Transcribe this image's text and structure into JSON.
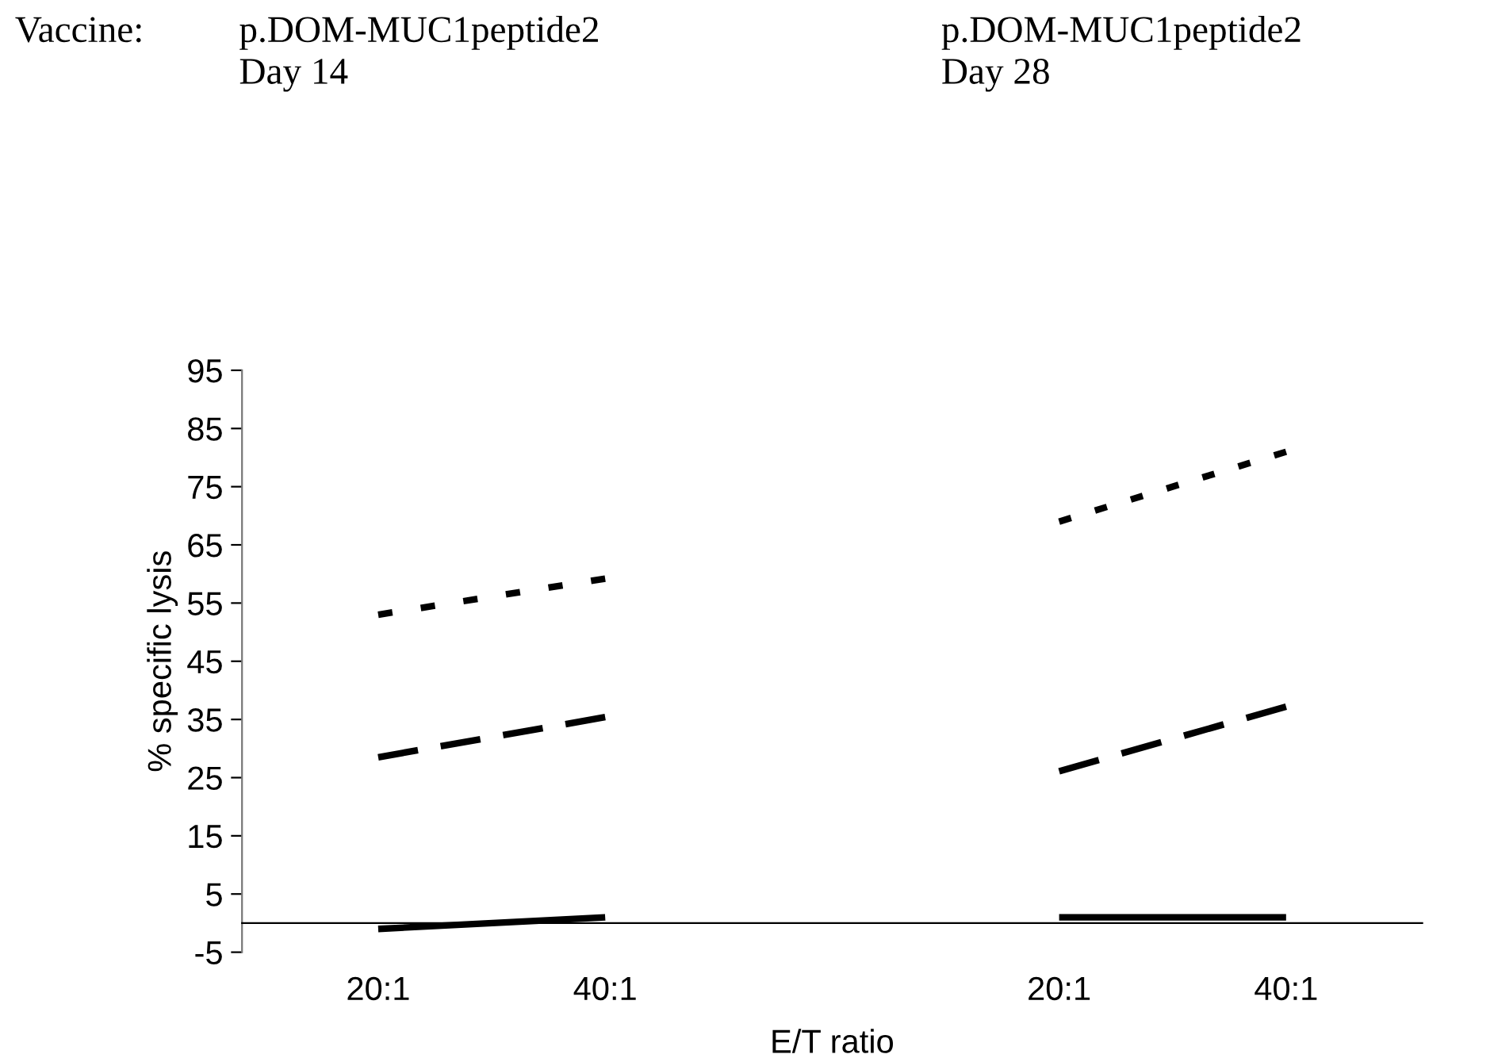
{
  "chart_data": {
    "type": "line",
    "xlabel": "E/T ratio",
    "ylabel": "% specific lysis",
    "categories": [
      "20:1",
      "40:1",
      null,
      "20:1",
      "40:1"
    ],
    "series": [
      {
        "color": "#000000",
        "line_style": "dotted",
        "values": [
          53,
          59.2,
          null,
          69,
          81
        ]
      },
      {
        "color": "#000000",
        "line_style": "dashed",
        "values": [
          28.5,
          35.4,
          null,
          26.1,
          37.2
        ]
      },
      {
        "color": "#000000",
        "line_style": "solid",
        "values": [
          -1,
          1,
          null,
          1,
          1
        ]
      }
    ],
    "ylim": [
      -5,
      95
    ],
    "yticks": [
      -5,
      5,
      15,
      25,
      35,
      45,
      55,
      65,
      75,
      85,
      95
    ],
    "grid": false,
    "legend": false,
    "annotations": [
      "Vaccine:",
      "p.DOM-MUC1peptide2\nDay 14",
      "p.DOM-MUC1peptide2\nDay 28"
    ]
  }
}
